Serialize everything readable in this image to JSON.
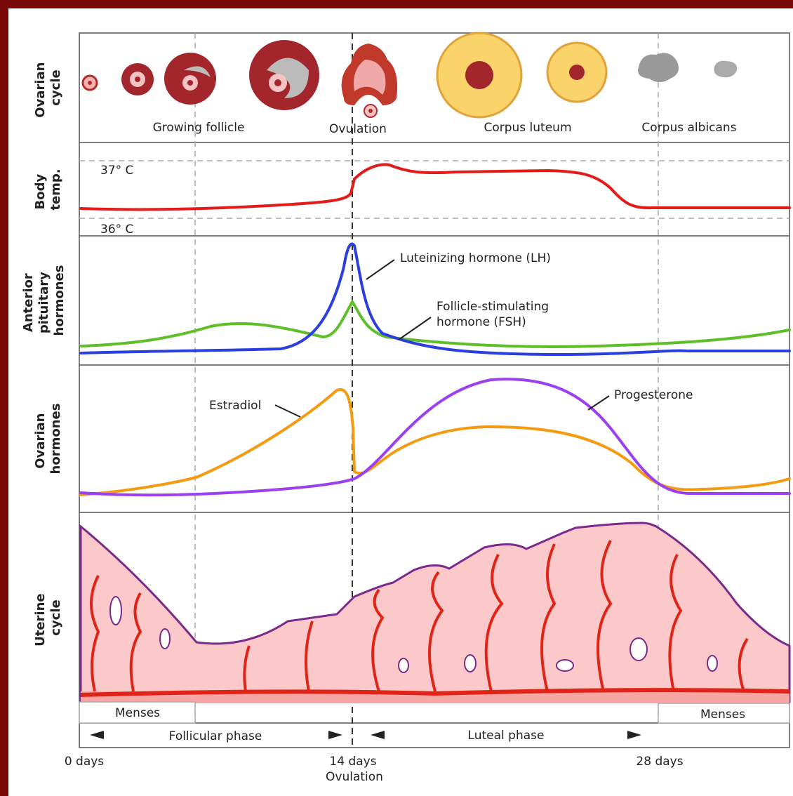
{
  "panels": [
    {
      "label": [
        "Ovarian",
        "cycle"
      ]
    },
    {
      "label": [
        "Body",
        "temp."
      ]
    },
    {
      "label": [
        "Anterior",
        "pituitary",
        "hormones"
      ]
    },
    {
      "label": [
        "Ovarian",
        "hormones"
      ]
    },
    {
      "label": [
        "Uterine",
        "cycle"
      ]
    }
  ],
  "ovarian_stages": [
    "Growing follicle",
    "Ovulation",
    "Corpus luteum",
    "Corpus albicans"
  ],
  "temperature_labels": [
    "37° C",
    "36° C"
  ],
  "hormone_labels": {
    "lh": "Luteinizing hormone (LH)",
    "fsh": [
      "Follicle-stimulating",
      "hormone (FSH)"
    ],
    "estradiol": "Estradiol",
    "progesterone": "Progesterone"
  },
  "menses": [
    "Menses",
    "Menses"
  ],
  "phases": [
    "Follicular phase",
    "Luteal phase"
  ],
  "axis": [
    "0 days",
    "14 days",
    "28 days"
  ],
  "axis_note": "Ovulation"
}
